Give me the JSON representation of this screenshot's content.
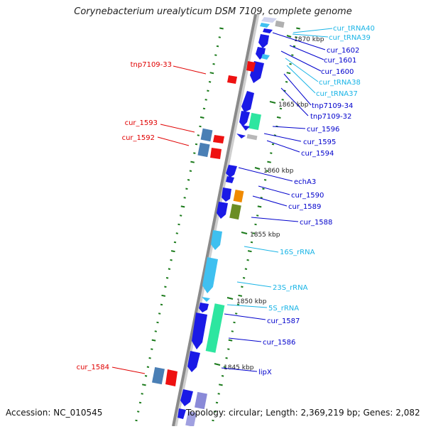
{
  "title": "Corynebacterium urealyticum DSM 7109, complete genome",
  "footer": {
    "accession": "Accession: NC_010545",
    "topology": "Topology: circular; Length: 2,369,219 bp; Genes: 2,082"
  },
  "scale_labels": [
    "1870 kbp",
    "1865 kbp",
    "1860 kbp",
    "1855 kbp",
    "1850 kbp",
    "1845 kbp"
  ],
  "gene_labels": [
    {
      "text": "cur_tRNA40",
      "color": "#18b4e6"
    },
    {
      "text": "cur_tRNA39",
      "color": "#18b4e6"
    },
    {
      "text": "cur_1602",
      "color": "#0000cc"
    },
    {
      "text": "cur_1601",
      "color": "#0000cc"
    },
    {
      "text": "cur_1600",
      "color": "#0000cc"
    },
    {
      "text": "cur_tRNA38",
      "color": "#18b4e6"
    },
    {
      "text": "cur_tRNA37",
      "color": "#18b4e6"
    },
    {
      "text": "tnp7109-34",
      "color": "#0000cc"
    },
    {
      "text": "tnp7109-32",
      "color": "#0000cc"
    },
    {
      "text": "cur_1596",
      "color": "#0000cc"
    },
    {
      "text": "cur_1595",
      "color": "#0000cc"
    },
    {
      "text": "cur_1594",
      "color": "#0000cc"
    },
    {
      "text": "echA3",
      "color": "#0000cc"
    },
    {
      "text": "cur_1590",
      "color": "#0000cc"
    },
    {
      "text": "cur_1589",
      "color": "#0000cc"
    },
    {
      "text": "cur_1588",
      "color": "#0000cc"
    },
    {
      "text": "16S_rRNA",
      "color": "#18b4e6"
    },
    {
      "text": "23S_rRNA",
      "color": "#18b4e6"
    },
    {
      "text": "5S_rRNA",
      "color": "#18b4e6"
    },
    {
      "text": "cur_1587",
      "color": "#0000cc"
    },
    {
      "text": "cur_1586",
      "color": "#0000cc"
    },
    {
      "text": "lipX",
      "color": "#0000cc"
    },
    {
      "text": "tnp7109-33",
      "color": "#e00000"
    },
    {
      "text": "cur_1593",
      "color": "#e00000"
    },
    {
      "text": "cur_1592",
      "color": "#e00000"
    },
    {
      "text": "cur_1584",
      "color": "#e00000"
    }
  ],
  "colors": {
    "cds": "#1a1ae6",
    "rna": "#3fc0f0",
    "mobile": "#ee1111",
    "other_blue": "#4a7fb5",
    "green_block": "#2ee6a0",
    "orange_block": "#f08a00",
    "olive_block": "#6b8e23",
    "backbone": "#888888",
    "tick": "#1a7a1a"
  }
}
